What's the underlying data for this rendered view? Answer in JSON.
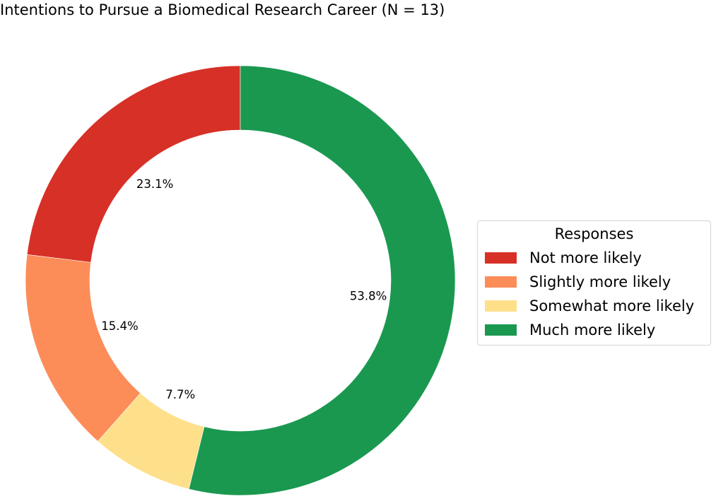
{
  "chart_data": {
    "type": "pie",
    "style": "donut",
    "title": "Intentions to Pursue a Biomedical Research Career (N = 13)",
    "categories": [
      "Not more likely",
      "Slightly more likely",
      "Somewhat more likely",
      "Much more likely"
    ],
    "values": [
      3,
      2,
      1,
      7
    ],
    "percent_labels": [
      "23.1%",
      "15.4%",
      "7.7%",
      "53.8%"
    ],
    "colors": [
      "#d73027",
      "#fc8d59",
      "#fee08b",
      "#1a9850"
    ],
    "legend": {
      "title": "Responses",
      "placement": "right"
    }
  }
}
